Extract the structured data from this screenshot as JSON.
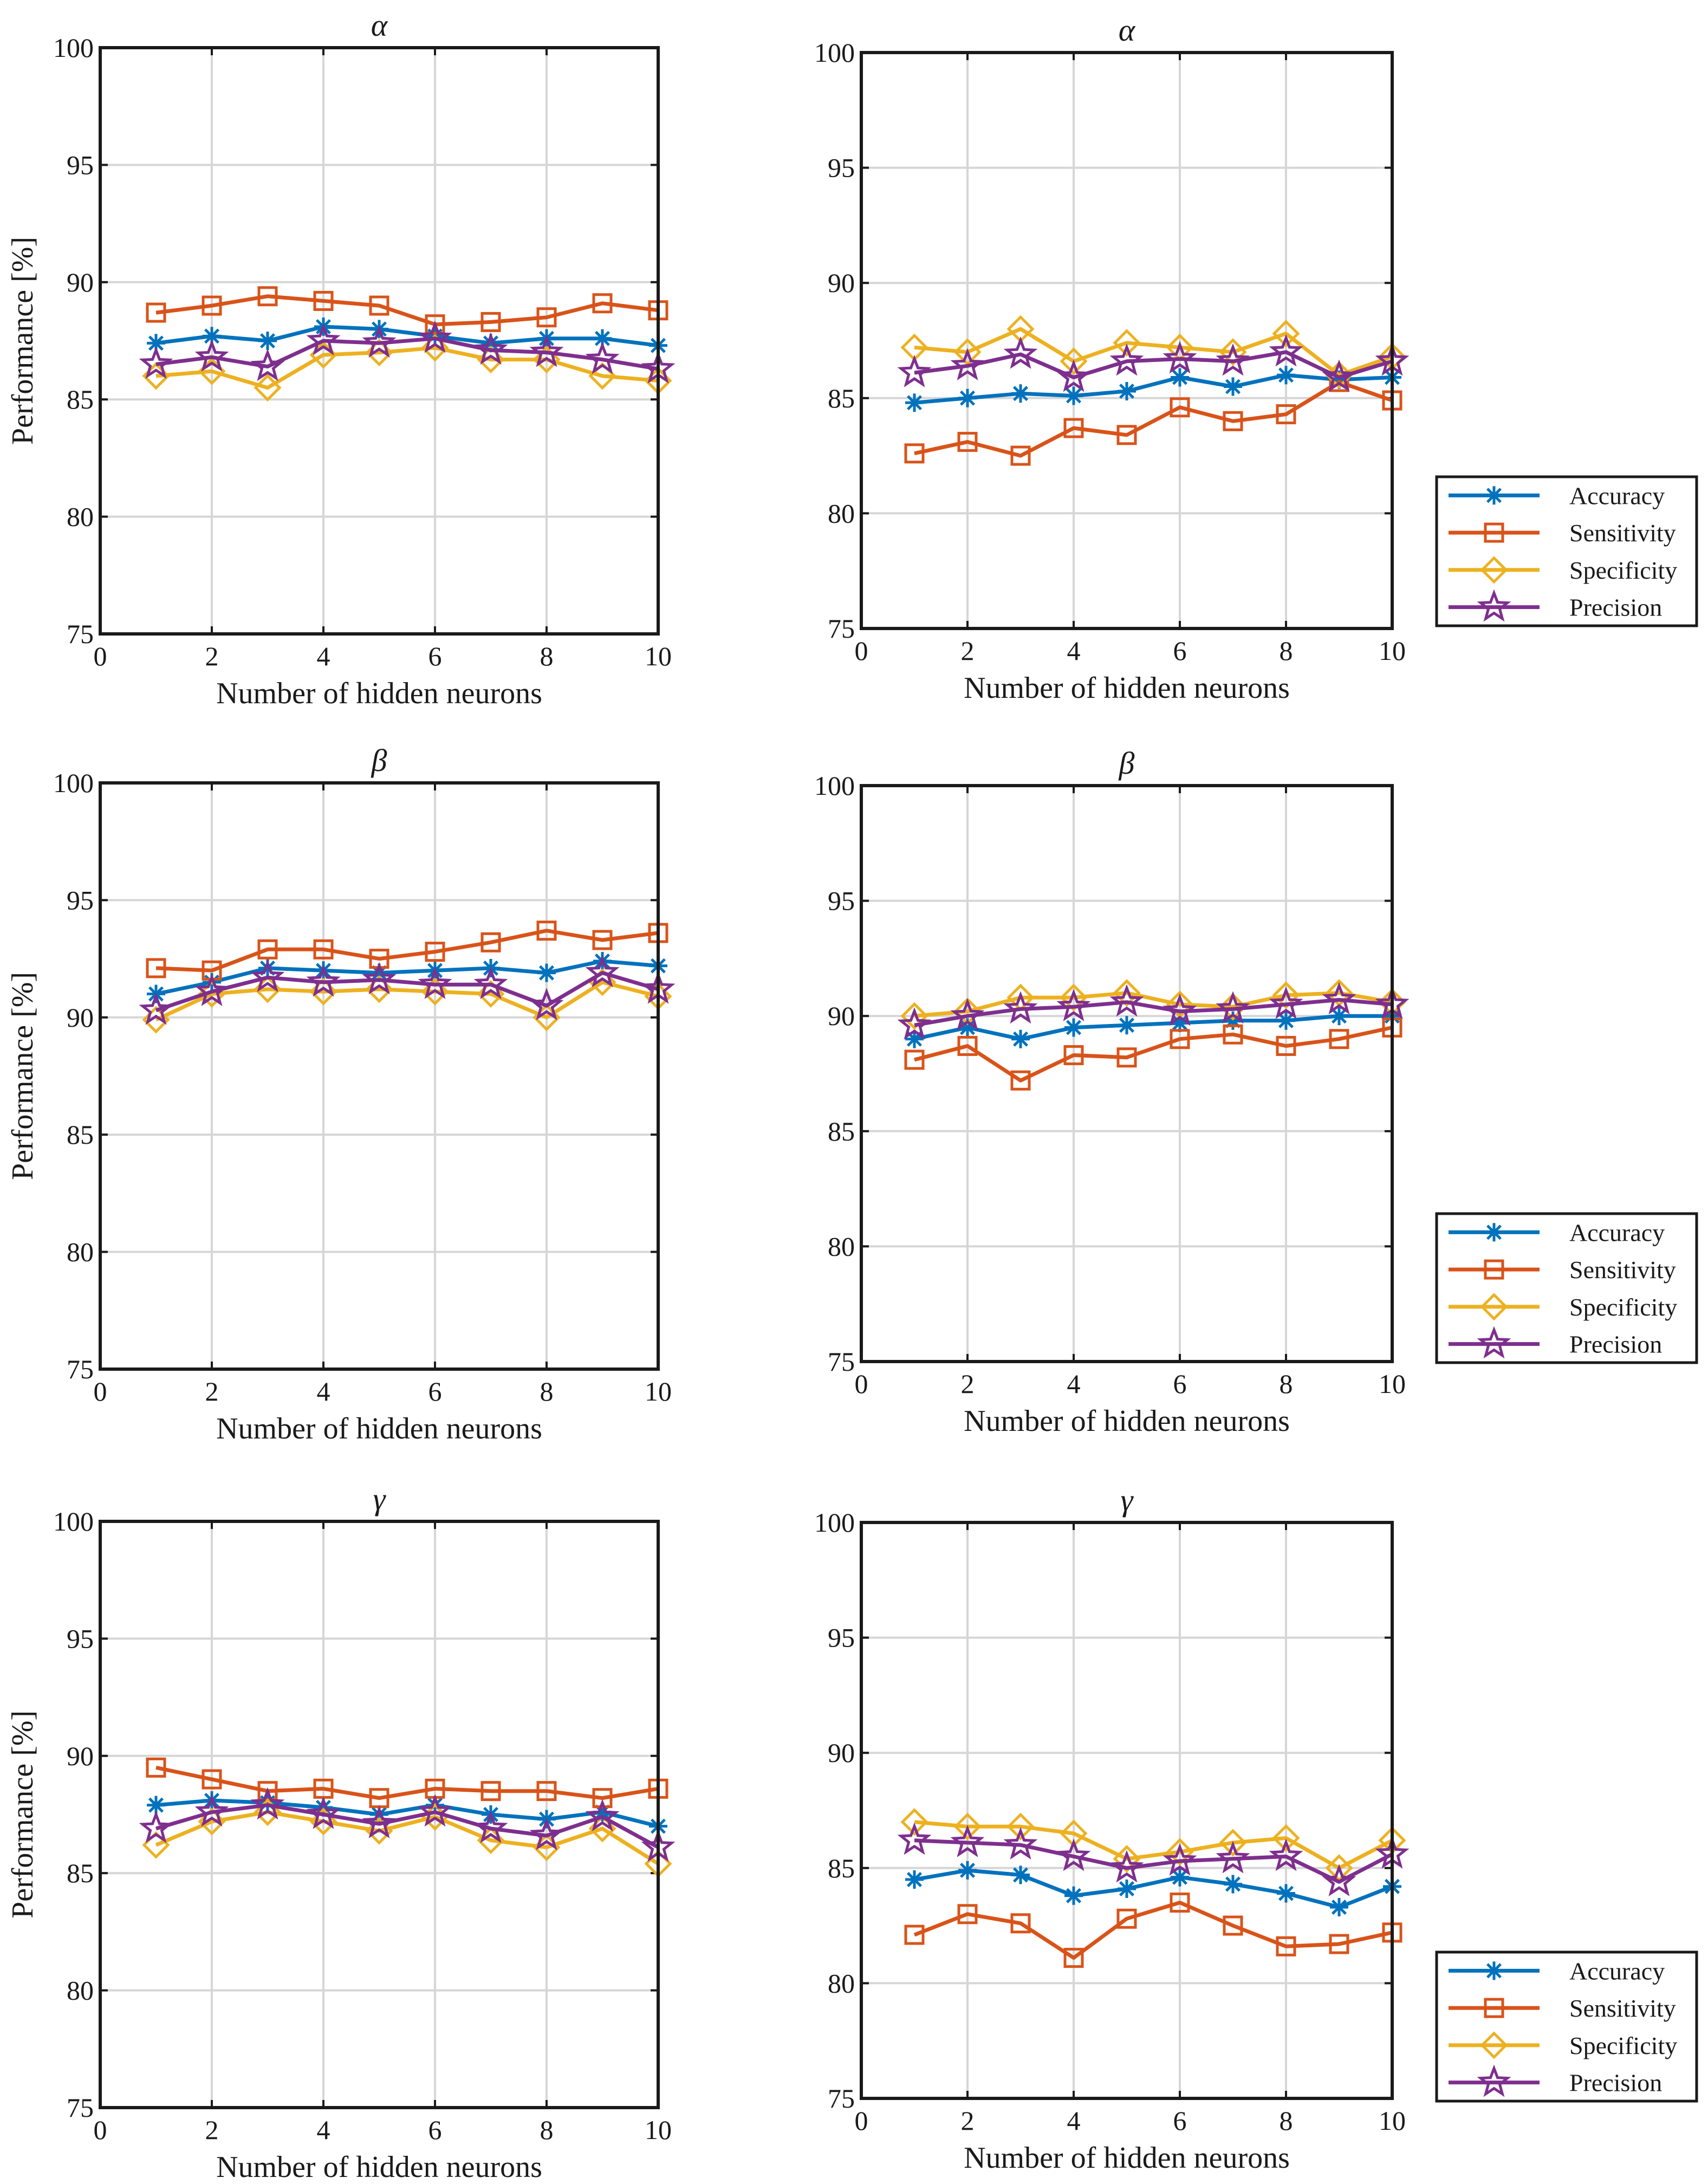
{
  "colors": {
    "Accuracy": "#0072BD",
    "Sensitivity": "#D95319",
    "Specificity": "#EDB120",
    "Precision": "#7E2F8E",
    "grid": "#d6d6d6",
    "axis": "#1a1a1a"
  },
  "chart_data": [
    {
      "type": "line",
      "title": "α",
      "xlabel": "Number of hidden neurons",
      "ylabel": "Performance [%]",
      "xlim": [
        0,
        10
      ],
      "ylim": [
        75,
        100
      ],
      "xticks": [
        0,
        2,
        4,
        6,
        8,
        10
      ],
      "yticks": [
        75,
        80,
        85,
        90,
        95,
        100
      ],
      "grid": true,
      "legend": null,
      "x": [
        1,
        2,
        3,
        4,
        5,
        6,
        7,
        8,
        9,
        10
      ],
      "series": [
        {
          "name": "Accuracy",
          "marker": "asterisk",
          "values": [
            87.4,
            87.7,
            87.5,
            88.1,
            88.0,
            87.7,
            87.4,
            87.6,
            87.6,
            87.3
          ]
        },
        {
          "name": "Sensitivity",
          "marker": "square",
          "values": [
            88.7,
            89.0,
            89.4,
            89.2,
            89.0,
            88.2,
            88.3,
            88.5,
            89.1,
            88.8
          ]
        },
        {
          "name": "Specificity",
          "marker": "diamond",
          "values": [
            86.0,
            86.2,
            85.5,
            86.9,
            87.0,
            87.2,
            86.7,
            86.7,
            86.0,
            85.8
          ]
        },
        {
          "name": "Precision",
          "marker": "pentagram",
          "values": [
            86.5,
            86.8,
            86.4,
            87.5,
            87.4,
            87.6,
            87.1,
            87.0,
            86.7,
            86.3
          ]
        }
      ]
    },
    {
      "type": "line",
      "title": "α",
      "xlabel": "Number of hidden neurons",
      "ylabel": "",
      "xlim": [
        0,
        10
      ],
      "ylim": [
        75,
        100
      ],
      "xticks": [
        0,
        2,
        4,
        6,
        8,
        10
      ],
      "yticks": [
        75,
        80,
        85,
        90,
        95,
        100
      ],
      "grid": true,
      "legend": "outside-right-bottom",
      "x": [
        1,
        2,
        3,
        4,
        5,
        6,
        7,
        8,
        9,
        10
      ],
      "series": [
        {
          "name": "Accuracy",
          "marker": "asterisk",
          "values": [
            84.8,
            85.0,
            85.2,
            85.1,
            85.3,
            85.9,
            85.5,
            86.0,
            85.8,
            85.9
          ]
        },
        {
          "name": "Sensitivity",
          "marker": "square",
          "values": [
            82.6,
            83.1,
            82.5,
            83.7,
            83.4,
            84.6,
            84.0,
            84.3,
            85.7,
            84.9
          ]
        },
        {
          "name": "Specificity",
          "marker": "diamond",
          "values": [
            87.2,
            87.0,
            88.0,
            86.6,
            87.4,
            87.2,
            87.0,
            87.8,
            86.0,
            86.8
          ]
        },
        {
          "name": "Precision",
          "marker": "pentagram",
          "values": [
            86.1,
            86.4,
            86.9,
            85.9,
            86.6,
            86.7,
            86.6,
            87.0,
            85.9,
            86.6
          ]
        }
      ]
    },
    {
      "type": "line",
      "title": "β",
      "xlabel": "Number of hidden neurons",
      "ylabel": "Performance [%]",
      "xlim": [
        0,
        10
      ],
      "ylim": [
        75,
        100
      ],
      "xticks": [
        0,
        2,
        4,
        6,
        8,
        10
      ],
      "yticks": [
        75,
        80,
        85,
        90,
        95,
        100
      ],
      "grid": true,
      "legend": null,
      "x": [
        1,
        2,
        3,
        4,
        5,
        6,
        7,
        8,
        9,
        10
      ],
      "series": [
        {
          "name": "Accuracy",
          "marker": "asterisk",
          "values": [
            91.0,
            91.5,
            92.1,
            92.0,
            91.9,
            92.0,
            92.1,
            91.9,
            92.4,
            92.2
          ]
        },
        {
          "name": "Sensitivity",
          "marker": "square",
          "values": [
            92.1,
            92.0,
            92.9,
            92.9,
            92.5,
            92.8,
            93.2,
            93.7,
            93.3,
            93.6
          ]
        },
        {
          "name": "Specificity",
          "marker": "diamond",
          "values": [
            89.9,
            91.0,
            91.2,
            91.1,
            91.2,
            91.1,
            91.0,
            90.0,
            91.5,
            90.9
          ]
        },
        {
          "name": "Precision",
          "marker": "pentagram",
          "values": [
            90.3,
            91.1,
            91.7,
            91.5,
            91.6,
            91.4,
            91.4,
            90.5,
            91.9,
            91.2
          ]
        }
      ]
    },
    {
      "type": "line",
      "title": "β",
      "xlabel": "Number of hidden neurons",
      "ylabel": "",
      "xlim": [
        0,
        10
      ],
      "ylim": [
        75,
        100
      ],
      "xticks": [
        0,
        2,
        4,
        6,
        8,
        10
      ],
      "yticks": [
        75,
        80,
        85,
        90,
        95,
        100
      ],
      "grid": true,
      "legend": "outside-right-bottom",
      "x": [
        1,
        2,
        3,
        4,
        5,
        6,
        7,
        8,
        9,
        10
      ],
      "series": [
        {
          "name": "Accuracy",
          "marker": "asterisk",
          "values": [
            89.0,
            89.5,
            89.0,
            89.5,
            89.6,
            89.7,
            89.8,
            89.8,
            90.0,
            90.0
          ]
        },
        {
          "name": "Sensitivity",
          "marker": "square",
          "values": [
            88.1,
            88.7,
            87.2,
            88.3,
            88.2,
            89.0,
            89.2,
            88.7,
            89.0,
            89.5
          ]
        },
        {
          "name": "Specificity",
          "marker": "diamond",
          "values": [
            90.0,
            90.2,
            90.8,
            90.8,
            91.0,
            90.5,
            90.4,
            90.9,
            91.0,
            90.6
          ]
        },
        {
          "name": "Precision",
          "marker": "pentagram",
          "values": [
            89.6,
            90.0,
            90.3,
            90.4,
            90.6,
            90.2,
            90.3,
            90.5,
            90.7,
            90.5
          ]
        }
      ]
    },
    {
      "type": "line",
      "title": "γ",
      "xlabel": "Number of hidden neurons",
      "ylabel": "Performance [%]",
      "xlim": [
        0,
        10
      ],
      "ylim": [
        75,
        100
      ],
      "xticks": [
        0,
        2,
        4,
        6,
        8,
        10
      ],
      "yticks": [
        75,
        80,
        85,
        90,
        95,
        100
      ],
      "grid": true,
      "legend": null,
      "x": [
        1,
        2,
        3,
        4,
        5,
        6,
        7,
        8,
        9,
        10
      ],
      "series": [
        {
          "name": "Accuracy",
          "marker": "asterisk",
          "values": [
            87.9,
            88.1,
            88.0,
            87.8,
            87.5,
            87.9,
            87.5,
            87.3,
            87.6,
            87.0
          ]
        },
        {
          "name": "Sensitivity",
          "marker": "square",
          "values": [
            89.5,
            89.0,
            88.5,
            88.6,
            88.2,
            88.6,
            88.5,
            88.5,
            88.2,
            88.6
          ]
        },
        {
          "name": "Specificity",
          "marker": "diamond",
          "values": [
            86.2,
            87.2,
            87.6,
            87.2,
            86.8,
            87.4,
            86.4,
            86.1,
            86.9,
            85.4
          ]
        },
        {
          "name": "Precision",
          "marker": "pentagram",
          "values": [
            86.9,
            87.6,
            87.9,
            87.5,
            87.1,
            87.6,
            86.9,
            86.6,
            87.4,
            86.1
          ]
        }
      ]
    },
    {
      "type": "line",
      "title": "γ",
      "xlabel": "Number of hidden neurons",
      "ylabel": "",
      "xlim": [
        0,
        10
      ],
      "ylim": [
        75,
        100
      ],
      "xticks": [
        0,
        2,
        4,
        6,
        8,
        10
      ],
      "yticks": [
        75,
        80,
        85,
        90,
        95,
        100
      ],
      "grid": true,
      "legend": "outside-right-bottom",
      "x": [
        1,
        2,
        3,
        4,
        5,
        6,
        7,
        8,
        9,
        10
      ],
      "series": [
        {
          "name": "Accuracy",
          "marker": "asterisk",
          "values": [
            84.5,
            84.9,
            84.7,
            83.8,
            84.1,
            84.6,
            84.3,
            83.9,
            83.3,
            84.2
          ]
        },
        {
          "name": "Sensitivity",
          "marker": "square",
          "values": [
            82.1,
            83.0,
            82.6,
            81.1,
            82.8,
            83.5,
            82.5,
            81.6,
            81.7,
            82.2
          ]
        },
        {
          "name": "Specificity",
          "marker": "diamond",
          "values": [
            87.0,
            86.8,
            86.8,
            86.5,
            85.4,
            85.7,
            86.1,
            86.3,
            85.0,
            86.2
          ]
        },
        {
          "name": "Precision",
          "marker": "pentagram",
          "values": [
            86.2,
            86.1,
            86.0,
            85.5,
            85.0,
            85.3,
            85.4,
            85.5,
            84.4,
            85.6
          ]
        }
      ]
    }
  ]
}
